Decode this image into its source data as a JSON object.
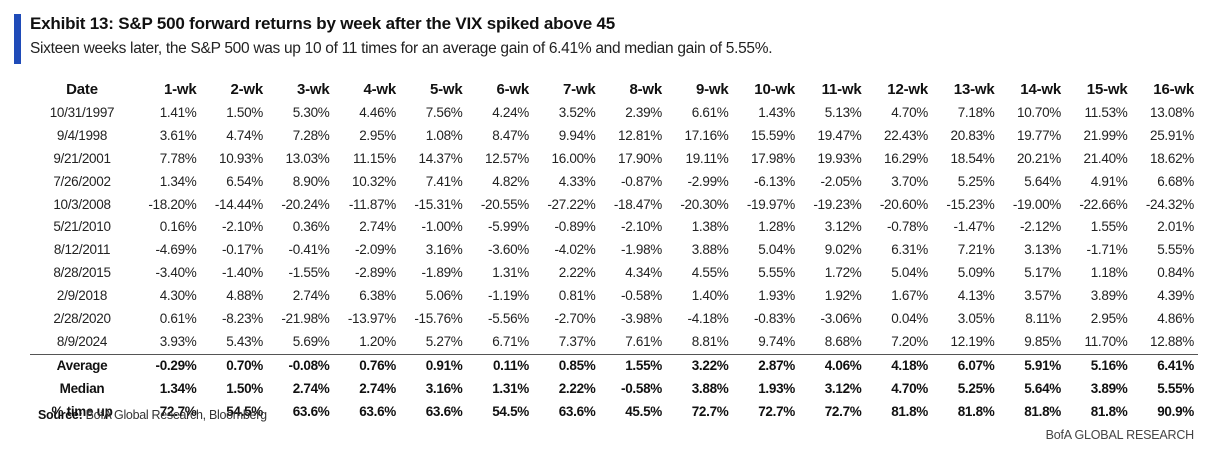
{
  "exhibit": {
    "title": "Exhibit 13: S&P 500 forward returns by week after the VIX spiked above 45",
    "subtitle": "Sixteen weeks later, the S&P 500 was up 10 of 11 times for an average gain of 6.41% and median gain of 5.55%.",
    "accent_color": "#1f4bb8"
  },
  "table": {
    "columns": [
      "Date",
      "1-wk",
      "2-wk",
      "3-wk",
      "4-wk",
      "5-wk",
      "6-wk",
      "7-wk",
      "8-wk",
      "9-wk",
      "10-wk",
      "11-wk",
      "12-wk",
      "13-wk",
      "14-wk",
      "15-wk",
      "16-wk"
    ],
    "rows": [
      {
        "date": "10/31/1997",
        "values": [
          "1.41%",
          "1.50%",
          "5.30%",
          "4.46%",
          "7.56%",
          "4.24%",
          "3.52%",
          "2.39%",
          "6.61%",
          "1.43%",
          "5.13%",
          "4.70%",
          "7.18%",
          "10.70%",
          "11.53%",
          "13.08%"
        ]
      },
      {
        "date": "9/4/1998",
        "values": [
          "3.61%",
          "4.74%",
          "7.28%",
          "2.95%",
          "1.08%",
          "8.47%",
          "9.94%",
          "12.81%",
          "17.16%",
          "15.59%",
          "19.47%",
          "22.43%",
          "20.83%",
          "19.77%",
          "21.99%",
          "25.91%"
        ]
      },
      {
        "date": "9/21/2001",
        "values": [
          "7.78%",
          "10.93%",
          "13.03%",
          "11.15%",
          "14.37%",
          "12.57%",
          "16.00%",
          "17.90%",
          "19.11%",
          "17.98%",
          "19.93%",
          "16.29%",
          "18.54%",
          "20.21%",
          "21.40%",
          "18.62%"
        ]
      },
      {
        "date": "7/26/2002",
        "values": [
          "1.34%",
          "6.54%",
          "8.90%",
          "10.32%",
          "7.41%",
          "4.82%",
          "4.33%",
          "-0.87%",
          "-2.99%",
          "-6.13%",
          "-2.05%",
          "3.70%",
          "5.25%",
          "5.64%",
          "4.91%",
          "6.68%"
        ]
      },
      {
        "date": "10/3/2008",
        "values": [
          "-18.20%",
          "-14.44%",
          "-20.24%",
          "-11.87%",
          "-15.31%",
          "-20.55%",
          "-27.22%",
          "-18.47%",
          "-20.30%",
          "-19.97%",
          "-19.23%",
          "-20.60%",
          "-15.23%",
          "-19.00%",
          "-22.66%",
          "-24.32%"
        ]
      },
      {
        "date": "5/21/2010",
        "values": [
          "0.16%",
          "-2.10%",
          "0.36%",
          "2.74%",
          "-1.00%",
          "-5.99%",
          "-0.89%",
          "-2.10%",
          "1.38%",
          "1.28%",
          "3.12%",
          "-0.78%",
          "-1.47%",
          "-2.12%",
          "1.55%",
          "2.01%"
        ]
      },
      {
        "date": "8/12/2011",
        "values": [
          "-4.69%",
          "-0.17%",
          "-0.41%",
          "-2.09%",
          "3.16%",
          "-3.60%",
          "-4.02%",
          "-1.98%",
          "3.88%",
          "5.04%",
          "9.02%",
          "6.31%",
          "7.21%",
          "3.13%",
          "-1.71%",
          "5.55%"
        ]
      },
      {
        "date": "8/28/2015",
        "values": [
          "-3.40%",
          "-1.40%",
          "-1.55%",
          "-2.89%",
          "-1.89%",
          "1.31%",
          "2.22%",
          "4.34%",
          "4.55%",
          "5.55%",
          "1.72%",
          "5.04%",
          "5.09%",
          "5.17%",
          "1.18%",
          "0.84%"
        ]
      },
      {
        "date": "2/9/2018",
        "values": [
          "4.30%",
          "4.88%",
          "2.74%",
          "6.38%",
          "5.06%",
          "-1.19%",
          "0.81%",
          "-0.58%",
          "1.40%",
          "1.93%",
          "1.92%",
          "1.67%",
          "4.13%",
          "3.57%",
          "3.89%",
          "4.39%"
        ]
      },
      {
        "date": "2/28/2020",
        "values": [
          "0.61%",
          "-8.23%",
          "-21.98%",
          "-13.97%",
          "-15.76%",
          "-5.56%",
          "-2.70%",
          "-3.98%",
          "-4.18%",
          "-0.83%",
          "-3.06%",
          "0.04%",
          "3.05%",
          "8.11%",
          "2.95%",
          "4.86%"
        ]
      },
      {
        "date": "8/9/2024",
        "values": [
          "3.93%",
          "5.43%",
          "5.69%",
          "1.20%",
          "5.27%",
          "6.71%",
          "7.37%",
          "7.61%",
          "8.81%",
          "9.74%",
          "8.68%",
          "7.20%",
          "12.19%",
          "9.85%",
          "11.70%",
          "12.88%"
        ]
      }
    ],
    "summary": [
      {
        "label": "Average",
        "values": [
          "-0.29%",
          "0.70%",
          "-0.08%",
          "0.76%",
          "0.91%",
          "0.11%",
          "0.85%",
          "1.55%",
          "3.22%",
          "2.87%",
          "4.06%",
          "4.18%",
          "6.07%",
          "5.91%",
          "5.16%",
          "6.41%"
        ]
      },
      {
        "label": "Median",
        "values": [
          "1.34%",
          "1.50%",
          "2.74%",
          "2.74%",
          "3.16%",
          "1.31%",
          "2.22%",
          "-0.58%",
          "3.88%",
          "1.93%",
          "3.12%",
          "4.70%",
          "5.25%",
          "5.64%",
          "3.89%",
          "5.55%"
        ]
      },
      {
        "label": "% time up",
        "values": [
          "72.7%",
          "54.5%",
          "63.6%",
          "63.6%",
          "63.6%",
          "54.5%",
          "63.6%",
          "45.5%",
          "72.7%",
          "72.7%",
          "72.7%",
          "81.8%",
          "81.8%",
          "81.8%",
          "81.8%",
          "90.9%"
        ]
      }
    ]
  },
  "source": {
    "label": "Source:",
    "text": "BofA Global Research, Bloomberg"
  },
  "footer": {
    "brand": "BofA GLOBAL RESEARCH"
  }
}
